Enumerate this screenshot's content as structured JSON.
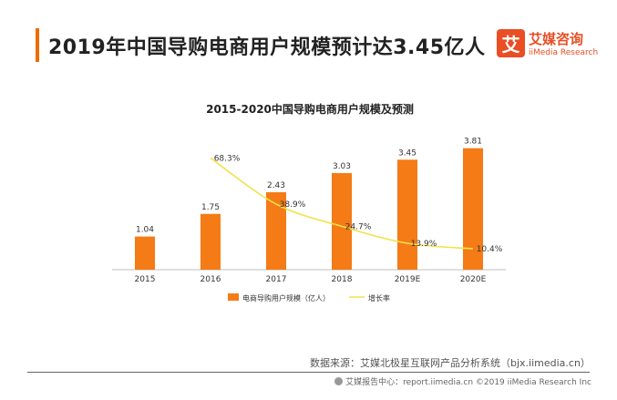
{
  "header": {
    "title": "2019年中国导购电商用户规模预计达3.45亿人"
  },
  "logo": {
    "mark": "艾",
    "name_cn": "艾媒咨询",
    "name_en": "iiMedia Research"
  },
  "chart_data": {
    "type": "bar",
    "title": "2015-2020中国导购电商用户规模及预测",
    "categories": [
      "2015",
      "2016",
      "2017",
      "2018",
      "2019E",
      "2020E"
    ],
    "series": [
      {
        "name": "电商导购用户规模（亿人）",
        "type": "bar",
        "values": [
          1.04,
          1.75,
          2.43,
          3.03,
          3.45,
          3.81
        ],
        "labels": [
          "1.04",
          "1.75",
          "2.43",
          "3.03",
          "3.45",
          "3.81"
        ],
        "color": "#f47b16"
      },
      {
        "name": "增长率",
        "type": "line",
        "values": [
          null,
          68.3,
          38.9,
          24.7,
          13.9,
          10.4
        ],
        "labels": [
          "",
          "68.3%",
          "38.9%",
          "24.7%",
          "13.9%",
          "10.4%"
        ],
        "unit": "%",
        "color": "#f2e24b"
      }
    ],
    "legend_position": "bottom",
    "grid": false
  },
  "source": "数据来源：艾媒北极星互联网产品分析系统（bjx.iimedia.cn）",
  "footer": "艾媒报告中心：report.iimedia.cn  ©2019  iiMedia Research  Inc"
}
